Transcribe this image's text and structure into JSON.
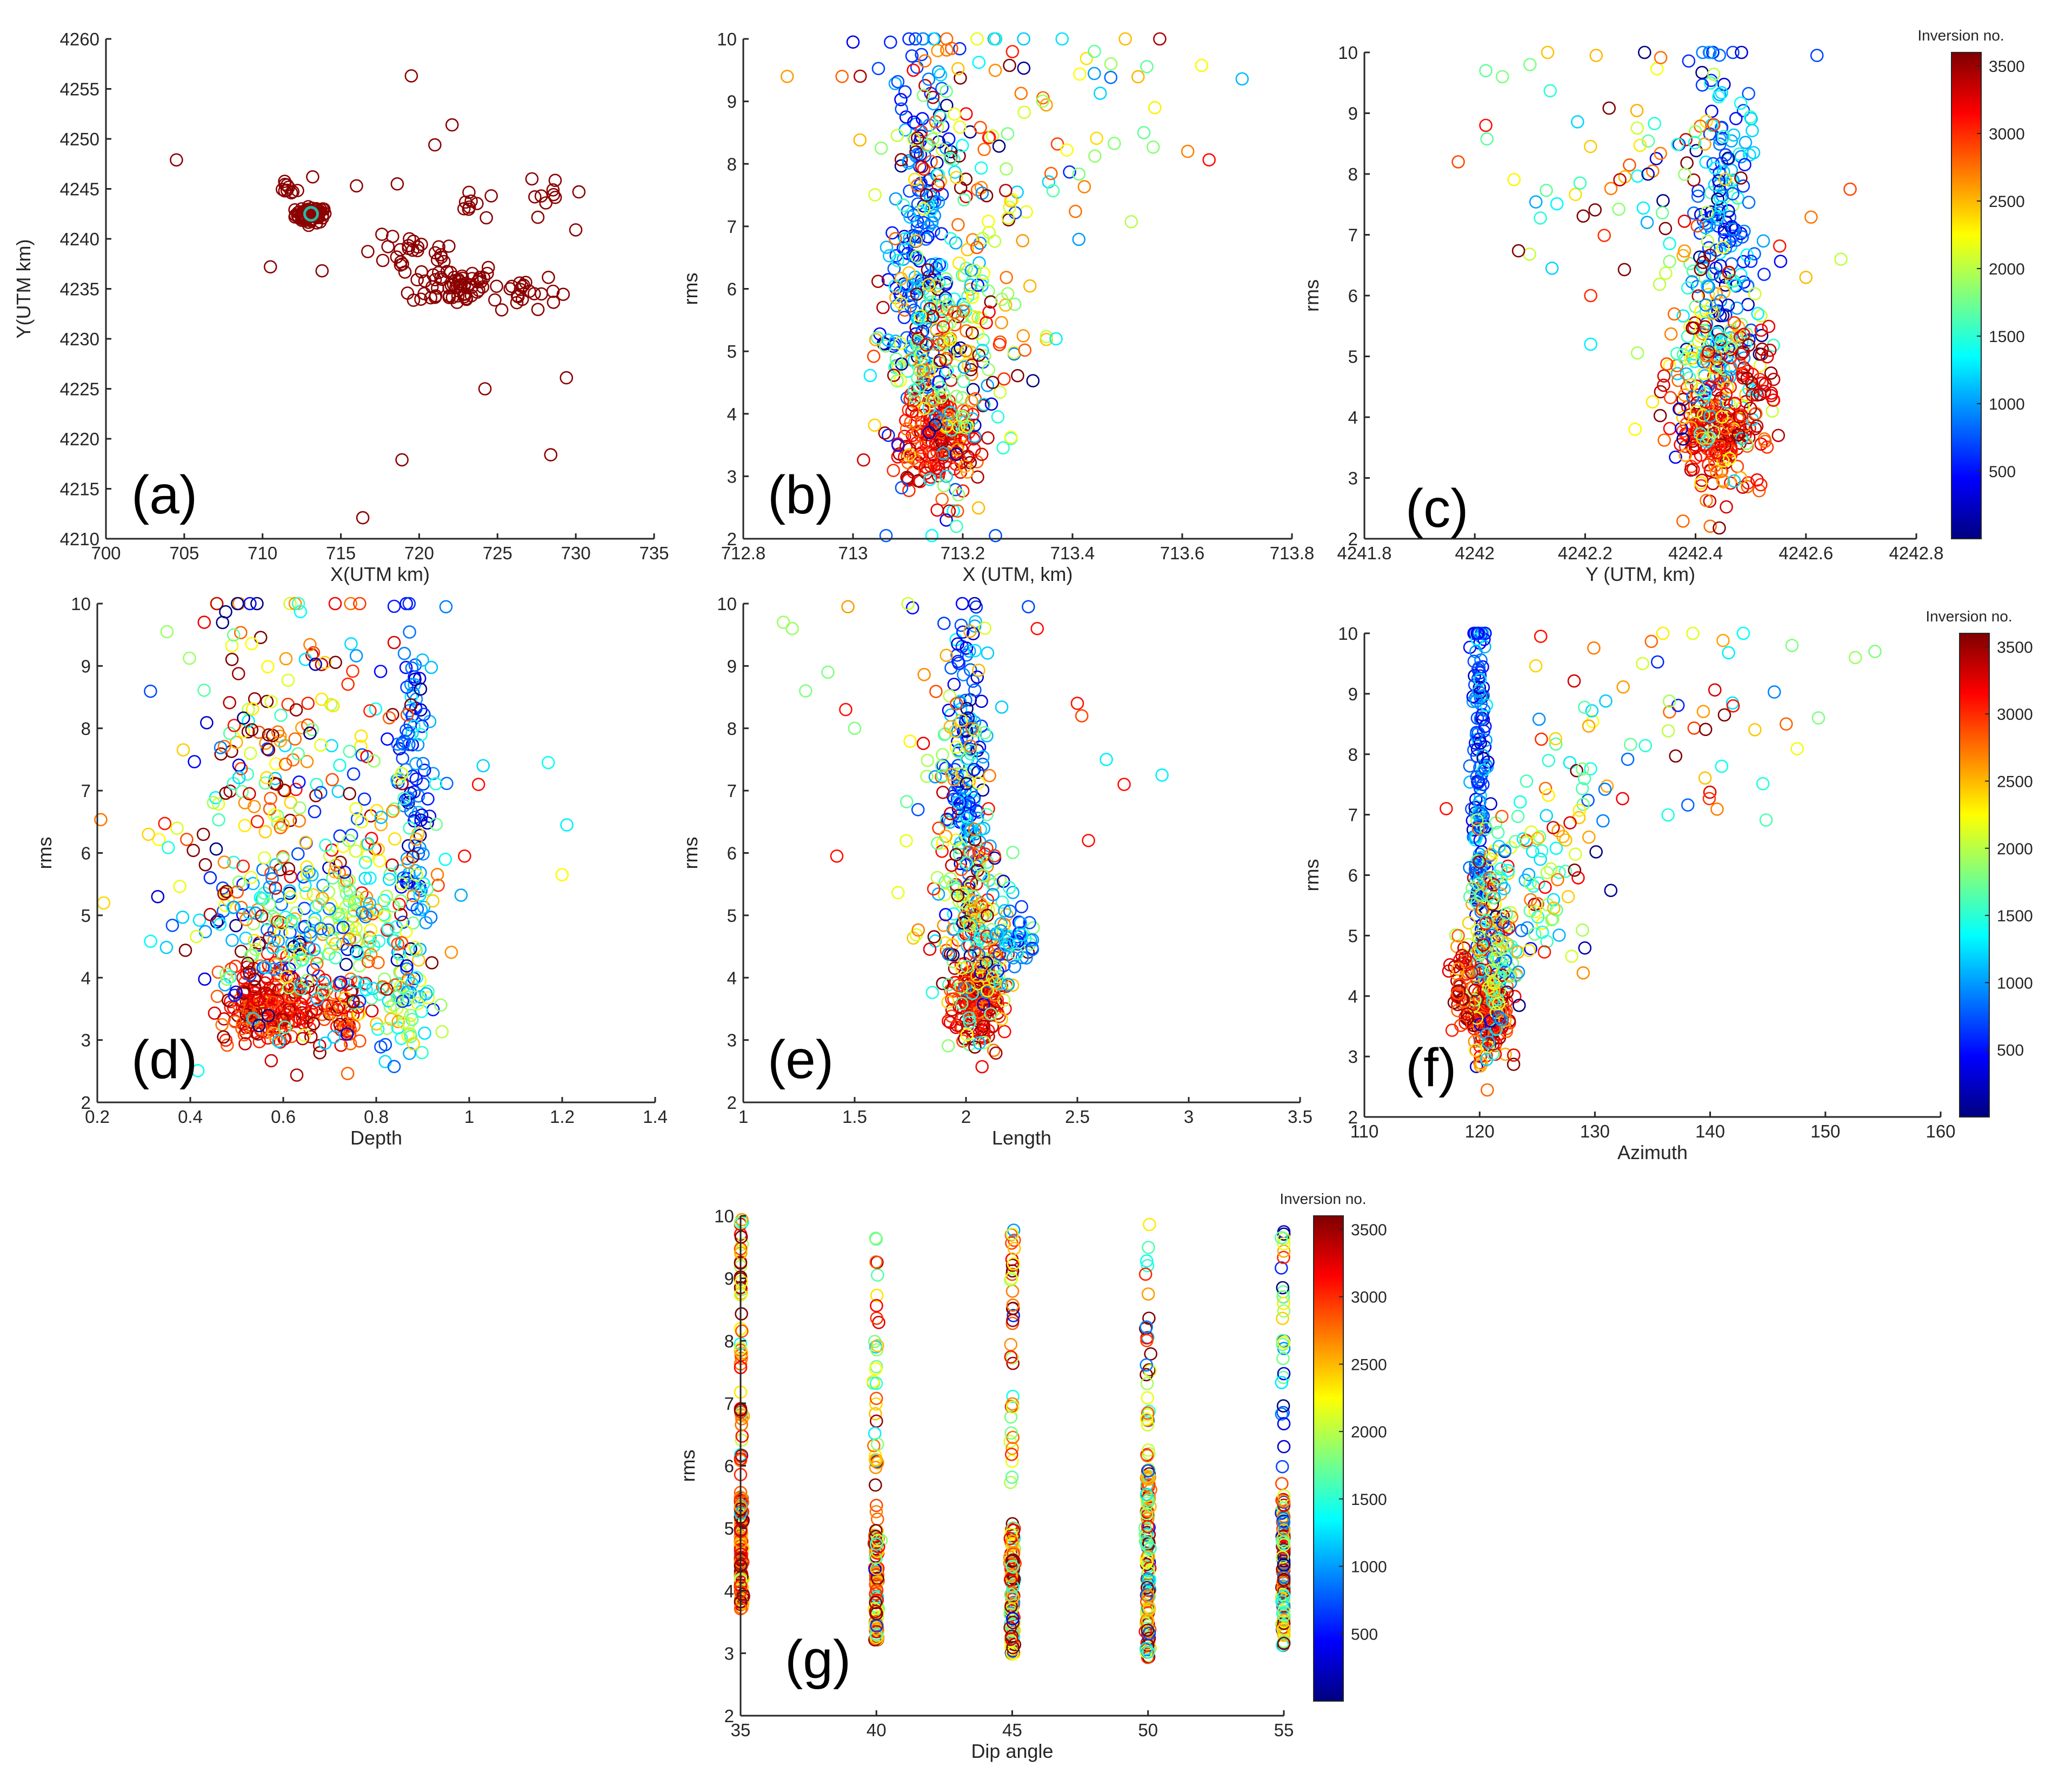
{
  "figure": {
    "description_free": true
  },
  "colors": {
    "jet": [
      "#00007f",
      "#0000ff",
      "#007fff",
      "#00ffff",
      "#7fff7f",
      "#ffff00",
      "#ff7f00",
      "#ff0000",
      "#7f0000"
    ],
    "axis": "#262626",
    "panel_a_marker": "#8b0000",
    "panel_a_highlight": "#26b8a0"
  },
  "colorbar": {
    "title": "Inversion no.",
    "range": [
      0,
      3600
    ],
    "ticks": [
      500,
      1000,
      1500,
      2000,
      2500,
      3000,
      3500
    ],
    "tick_labels": [
      "500",
      "1000",
      "1500",
      "2000",
      "2500",
      "3000",
      "3500"
    ]
  },
  "chart_data": [
    {
      "id": "a",
      "panel_label": "(a)",
      "type": "scatter",
      "title": "",
      "xlabel": "X(UTM km)",
      "ylabel": "Y(UTM km)",
      "xlim": [
        700,
        735
      ],
      "ylim": [
        4210,
        4260
      ],
      "xticks": [
        700,
        705,
        710,
        715,
        720,
        725,
        730,
        735
      ],
      "yticks": [
        4210,
        4215,
        4220,
        4225,
        4230,
        4235,
        4240,
        4245,
        4250,
        4255,
        4260
      ],
      "color_mode": "single",
      "clusters": [
        {
          "x": 713.1,
          "y": 4242.4,
          "sx": 0.5,
          "sy": 0.4,
          "n": 70
        },
        {
          "x": 711.6,
          "y": 4245.0,
          "sx": 0.3,
          "sy": 0.3,
          "n": 10
        },
        {
          "x": 719.5,
          "y": 4238.5,
          "sx": 1.6,
          "sy": 0.9,
          "n": 25
        },
        {
          "x": 722.3,
          "y": 4235.5,
          "sx": 1.4,
          "sy": 1.1,
          "n": 60
        },
        {
          "x": 726.5,
          "y": 4234.8,
          "sx": 1.2,
          "sy": 0.9,
          "n": 22
        },
        {
          "x": 728.2,
          "y": 4244.0,
          "sx": 0.6,
          "sy": 0.8,
          "n": 8
        },
        {
          "x": 723.2,
          "y": 4243.3,
          "sx": 0.4,
          "sy": 0.6,
          "n": 8
        }
      ],
      "points": [
        {
          "x": 704.5,
          "y": 4247.9
        },
        {
          "x": 719.5,
          "y": 4256.3
        },
        {
          "x": 722.1,
          "y": 4251.4
        },
        {
          "x": 721.0,
          "y": 4249.4
        },
        {
          "x": 713.2,
          "y": 4246.2
        },
        {
          "x": 716.0,
          "y": 4245.3
        },
        {
          "x": 718.6,
          "y": 4245.5
        },
        {
          "x": 710.5,
          "y": 4237.2
        },
        {
          "x": 713.8,
          "y": 4236.8
        },
        {
          "x": 724.2,
          "y": 4225.0
        },
        {
          "x": 729.4,
          "y": 4226.1
        },
        {
          "x": 718.9,
          "y": 4217.9
        },
        {
          "x": 728.4,
          "y": 4218.4
        },
        {
          "x": 716.4,
          "y": 4212.1
        },
        {
          "x": 730.2,
          "y": 4244.7
        },
        {
          "x": 730.0,
          "y": 4240.9
        },
        {
          "x": 727.2,
          "y": 4246.0
        },
        {
          "x": 724.6,
          "y": 4244.3
        }
      ]
    },
    {
      "id": "b",
      "panel_label": "(b)",
      "type": "scatter",
      "title": "",
      "xlabel": "X (UTM, km)",
      "ylabel": "rms",
      "xlim": [
        712.8,
        713.8
      ],
      "ylim": [
        2,
        10
      ],
      "xticks": [
        712.8,
        713,
        713.2,
        713.4,
        713.6,
        713.8
      ],
      "xtick_labels": [
        "712.8",
        "713",
        "713.2",
        "713.4",
        "713.6",
        "713.8"
      ],
      "yticks": [
        2,
        3,
        4,
        5,
        6,
        7,
        8,
        9,
        10
      ],
      "color_mode": "inversion",
      "clusters": [
        {
          "x": 713.12,
          "y": 6.8,
          "sx": 0.028,
          "sy": 1.7,
          "n": 170,
          "c": 700,
          "cs": 350
        },
        {
          "x": 713.16,
          "y": 3.6,
          "sx": 0.035,
          "sy": 0.4,
          "n": 170,
          "c": 3150,
          "cs": 250
        },
        {
          "x": 713.15,
          "y": 4.8,
          "sx": 0.05,
          "sy": 0.9,
          "n": 180,
          "c": 1900,
          "cs": 900
        },
        {
          "x": 713.22,
          "y": 5.6,
          "sx": 0.06,
          "sy": 1.3,
          "n": 110,
          "c": 2300,
          "cs": 900
        },
        {
          "x": 713.18,
          "y": 8.6,
          "sx": 0.07,
          "sy": 0.9,
          "n": 70,
          "c": 2400,
          "cs": 1000
        },
        {
          "x": 713.36,
          "y": 8.2,
          "sx": 0.12,
          "sy": 1.2,
          "n": 40,
          "c": 2100,
          "cs": 800
        }
      ],
      "points": [
        {
          "x": 712.88,
          "y": 9.4,
          "c": 2600
        },
        {
          "x": 712.98,
          "y": 9.4,
          "c": 2800
        },
        {
          "x": 713.61,
          "y": 8.2,
          "c": 2700
        },
        {
          "x": 713.55,
          "y": 8.9,
          "c": 2300
        },
        {
          "x": 713.53,
          "y": 8.5,
          "c": 1700
        },
        {
          "x": 713.47,
          "y": 9.6,
          "c": 1900
        },
        {
          "x": 713.44,
          "y": 9.8,
          "c": 1700
        },
        {
          "x": 713.0,
          "y": 9.95,
          "c": 400
        },
        {
          "x": 713.17,
          "y": 3.0,
          "c": 1200
        },
        {
          "x": 713.14,
          "y": 2.95,
          "c": 1300
        },
        {
          "x": 713.37,
          "y": 5.2,
          "c": 1300
        }
      ]
    },
    {
      "id": "c",
      "panel_label": "(c)",
      "type": "scatter",
      "title": "",
      "xlabel": "Y (UTM, km)",
      "ylabel": "rms",
      "xlim": [
        4241.8,
        4242.8
      ],
      "ylim": [
        2,
        10
      ],
      "xticks": [
        4241.8,
        4242,
        4242.2,
        4242.4,
        4242.6,
        4242.8
      ],
      "xtick_labels": [
        "4241.8",
        "4242",
        "4242.2",
        "4242.4",
        "4242.6",
        "4242.8"
      ],
      "yticks": [
        2,
        3,
        4,
        5,
        6,
        7,
        8,
        9,
        10
      ],
      "color_mode": "inversion",
      "clusters": [
        {
          "x": 4242.45,
          "y": 7.0,
          "sx": 0.025,
          "sy": 1.6,
          "n": 170,
          "c": 800,
          "cs": 450
        },
        {
          "x": 4242.44,
          "y": 3.7,
          "sx": 0.04,
          "sy": 0.45,
          "n": 160,
          "c": 3150,
          "cs": 250
        },
        {
          "x": 4242.43,
          "y": 5.0,
          "sx": 0.05,
          "sy": 0.9,
          "n": 170,
          "c": 2000,
          "cs": 900
        },
        {
          "x": 4242.5,
          "y": 4.6,
          "sx": 0.02,
          "sy": 0.5,
          "n": 40,
          "c": 3300,
          "cs": 200
        },
        {
          "x": 4242.3,
          "y": 7.8,
          "sx": 0.11,
          "sy": 1.2,
          "n": 70,
          "c": 2300,
          "cs": 1000
        }
      ],
      "points": [
        {
          "x": 4241.97,
          "y": 8.2,
          "c": 2900
        },
        {
          "x": 4242.02,
          "y": 8.8,
          "c": 3100
        },
        {
          "x": 4242.02,
          "y": 9.7,
          "c": 1700
        },
        {
          "x": 4242.05,
          "y": 9.6,
          "c": 1800
        },
        {
          "x": 4242.1,
          "y": 9.8,
          "c": 1800
        },
        {
          "x": 4242.14,
          "y": 6.45,
          "c": 1200
        },
        {
          "x": 4242.21,
          "y": 6.0,
          "c": 3000
        },
        {
          "x": 4242.21,
          "y": 5.2,
          "c": 1300
        },
        {
          "x": 4242.68,
          "y": 7.75,
          "c": 2900
        },
        {
          "x": 4242.62,
          "y": 9.95,
          "c": 700
        },
        {
          "x": 4242.6,
          "y": 6.3,
          "c": 2500
        },
        {
          "x": 4242.47,
          "y": 2.95,
          "c": 1200
        },
        {
          "x": 4242.55,
          "y": 3.7,
          "c": 3400
        },
        {
          "x": 4242.22,
          "y": 9.95,
          "c": 2500
        }
      ]
    },
    {
      "id": "d",
      "panel_label": "(d)",
      "type": "scatter",
      "title": "",
      "xlabel": "Depth",
      "ylabel": "rms",
      "xlim": [
        0.2,
        1.4
      ],
      "ylim": [
        2,
        10
      ],
      "xticks": [
        0.2,
        0.4,
        0.6,
        0.8,
        1,
        1.2,
        1.4
      ],
      "xtick_labels": [
        "0.2",
        "0.4",
        "0.6",
        "0.8",
        "1",
        "1.2",
        "1.4"
      ],
      "yticks": [
        2,
        3,
        4,
        5,
        6,
        7,
        8,
        9,
        10
      ],
      "color_mode": "inversion",
      "clusters": [
        {
          "x": 0.88,
          "y": 7.0,
          "sx": 0.02,
          "sy": 1.4,
          "n": 100,
          "c": 750,
          "cs": 300
        },
        {
          "x": 0.54,
          "y": 3.6,
          "sx": 0.04,
          "sy": 0.35,
          "n": 110,
          "c": 3150,
          "cs": 250
        },
        {
          "x": 0.61,
          "y": 3.5,
          "sx": 0.03,
          "sy": 0.35,
          "n": 90,
          "c": 3150,
          "cs": 250
        },
        {
          "x": 0.72,
          "y": 3.4,
          "sx": 0.03,
          "sy": 0.3,
          "n": 60,
          "c": 3100,
          "cs": 300
        },
        {
          "x": 0.86,
          "y": 3.6,
          "sx": 0.03,
          "sy": 0.4,
          "n": 60,
          "c": 1700,
          "cs": 700
        },
        {
          "x": 0.65,
          "y": 4.7,
          "sx": 0.12,
          "sy": 0.7,
          "n": 230,
          "c": 1600,
          "cs": 900
        },
        {
          "x": 0.6,
          "y": 7.2,
          "sx": 0.14,
          "sy": 1.7,
          "n": 220,
          "c": 2300,
          "cs": 1000
        },
        {
          "x": 0.82,
          "y": 5.5,
          "sx": 0.05,
          "sy": 0.8,
          "n": 60,
          "c": 1900,
          "cs": 600
        }
      ],
      "points": [
        {
          "x": 0.31,
          "y": 6.3,
          "c": 2400
        },
        {
          "x": 0.33,
          "y": 5.3,
          "c": 300
        },
        {
          "x": 1.17,
          "y": 7.45,
          "c": 1400
        },
        {
          "x": 1.21,
          "y": 6.45,
          "c": 1300
        },
        {
          "x": 1.02,
          "y": 7.1,
          "c": 3100
        },
        {
          "x": 1.03,
          "y": 7.4,
          "c": 1200
        },
        {
          "x": 0.99,
          "y": 5.95,
          "c": 3100
        },
        {
          "x": 0.35,
          "y": 9.55,
          "c": 1900
        },
        {
          "x": 0.43,
          "y": 9.7,
          "c": 3200
        },
        {
          "x": 0.69,
          "y": 2.95,
          "c": 1200
        },
        {
          "x": 0.59,
          "y": 2.98,
          "c": 1200
        },
        {
          "x": 0.95,
          "y": 9.95,
          "c": 900
        }
      ]
    },
    {
      "id": "e",
      "panel_label": "(e)",
      "type": "scatter",
      "title": "",
      "xlabel": "Length",
      "ylabel": "rms",
      "xlim": [
        1,
        3.5
      ],
      "ylim": [
        2,
        10
      ],
      "xticks": [
        1,
        1.5,
        2,
        2.5,
        3,
        3.5
      ],
      "xtick_labels": [
        "1",
        "1.5",
        "2",
        "2.5",
        "3",
        "3.5"
      ],
      "yticks": [
        2,
        3,
        4,
        5,
        6,
        7,
        8,
        9,
        10
      ],
      "color_mode": "inversion",
      "clusters": [
        {
          "x": 2.01,
          "y": 7.4,
          "sx": 0.035,
          "sy": 1.3,
          "n": 140,
          "c": 800,
          "cs": 400
        },
        {
          "x": 2.06,
          "y": 3.6,
          "sx": 0.06,
          "sy": 0.35,
          "n": 160,
          "c": 3150,
          "cs": 250
        },
        {
          "x": 2.05,
          "y": 4.6,
          "sx": 0.08,
          "sy": 0.7,
          "n": 170,
          "c": 2000,
          "cs": 900
        },
        {
          "x": 1.95,
          "y": 7.0,
          "sx": 0.1,
          "sy": 1.5,
          "n": 90,
          "c": 2300,
          "cs": 1000
        },
        {
          "x": 2.22,
          "y": 4.7,
          "sx": 0.05,
          "sy": 0.3,
          "n": 40,
          "c": 1000,
          "cs": 300
        }
      ],
      "points": [
        {
          "x": 1.18,
          "y": 9.7,
          "c": 1900
        },
        {
          "x": 1.22,
          "y": 9.6,
          "c": 1900
        },
        {
          "x": 1.28,
          "y": 8.6,
          "c": 1800
        },
        {
          "x": 1.38,
          "y": 8.9,
          "c": 1800
        },
        {
          "x": 1.42,
          "y": 5.95,
          "c": 3100
        },
        {
          "x": 1.47,
          "y": 9.95,
          "c": 2600
        },
        {
          "x": 1.46,
          "y": 8.3,
          "c": 3100
        },
        {
          "x": 1.5,
          "y": 8.0,
          "c": 1800
        },
        {
          "x": 2.5,
          "y": 8.4,
          "c": 3100
        },
        {
          "x": 2.52,
          "y": 8.2,
          "c": 2900
        },
        {
          "x": 2.55,
          "y": 6.2,
          "c": 3100
        },
        {
          "x": 2.63,
          "y": 7.5,
          "c": 1300
        },
        {
          "x": 2.71,
          "y": 7.1,
          "c": 3100
        },
        {
          "x": 2.88,
          "y": 7.25,
          "c": 1300
        },
        {
          "x": 2.28,
          "y": 9.95,
          "c": 700
        },
        {
          "x": 2.32,
          "y": 9.6,
          "c": 3100
        },
        {
          "x": 2.06,
          "y": 2.95,
          "c": 1200
        }
      ]
    },
    {
      "id": "f",
      "panel_label": "(f)",
      "type": "scatter",
      "title": "",
      "xlabel": "Azimuth",
      "ylabel": "rms",
      "xlim": [
        110,
        160
      ],
      "ylim": [
        2,
        10
      ],
      "xticks": [
        110,
        120,
        130,
        140,
        150,
        160
      ],
      "xtick_labels": [
        "110",
        "120",
        "130",
        "140",
        "150",
        "160"
      ],
      "yticks": [
        2,
        3,
        4,
        5,
        6,
        7,
        8,
        9,
        10
      ],
      "color_mode": "inversion",
      "clusters": [
        {
          "x": 120.0,
          "y": 7.3,
          "sx": 0.35,
          "sy": 1.6,
          "n": 170,
          "c": 700,
          "cs": 350
        },
        {
          "x": 120.8,
          "y": 3.7,
          "sx": 0.9,
          "sy": 0.4,
          "n": 150,
          "c": 3100,
          "cs": 300
        },
        {
          "x": 121.0,
          "y": 4.8,
          "sx": 1.0,
          "sy": 0.8,
          "n": 160,
          "c": 2000,
          "cs": 900
        },
        {
          "x": 124.5,
          "y": 5.9,
          "sx": 2.0,
          "sy": 0.8,
          "n": 70,
          "c": 1600,
          "cs": 700
        },
        {
          "x": 128.0,
          "y": 7.1,
          "sx": 2.8,
          "sy": 1.0,
          "n": 40,
          "c": 2200,
          "cs": 900
        },
        {
          "x": 138.0,
          "y": 8.5,
          "sx": 6.0,
          "sy": 0.8,
          "n": 40,
          "c": 2400,
          "cs": 900
        },
        {
          "x": 118.3,
          "y": 4.1,
          "sx": 0.5,
          "sy": 0.5,
          "n": 40,
          "c": 3100,
          "cs": 400
        }
      ],
      "points": [
        {
          "x": 154.3,
          "y": 9.7,
          "c": 1800
        },
        {
          "x": 152.6,
          "y": 9.6,
          "c": 1900
        },
        {
          "x": 149.4,
          "y": 8.6,
          "c": 1800
        },
        {
          "x": 147.1,
          "y": 9.8,
          "c": 1800
        },
        {
          "x": 146.6,
          "y": 8.5,
          "c": 2800
        },
        {
          "x": 141.0,
          "y": 7.8,
          "c": 1400
        },
        {
          "x": 117.1,
          "y": 7.1,
          "c": 3100
        },
        {
          "x": 120.6,
          "y": 2.95,
          "c": 1200
        },
        {
          "x": 125.3,
          "y": 9.95,
          "c": 3100
        },
        {
          "x": 142.0,
          "y": 8.8,
          "c": 3100
        }
      ]
    },
    {
      "id": "g",
      "panel_label": "(g)",
      "type": "scatter",
      "title": "",
      "xlabel": "Dip angle",
      "ylabel": "rms",
      "xlim": [
        35,
        55
      ],
      "ylim": [
        2,
        10
      ],
      "xticks": [
        35,
        40,
        45,
        50,
        55
      ],
      "xtick_labels": [
        "35",
        "40",
        "45",
        "50",
        "55"
      ],
      "yticks": [
        2,
        3,
        4,
        5,
        6,
        7,
        8,
        9,
        10
      ],
      "color_mode": "inversion",
      "columns": [
        {
          "x": 35,
          "ymin": 3.7,
          "ymax": 10.0,
          "dense_below": 5.5,
          "n": 170,
          "c": 2800,
          "cs": 700
        },
        {
          "x": 40,
          "ymin": 3.2,
          "ymax": 9.7,
          "dense_below": 5.0,
          "n": 150,
          "c": 2600,
          "cs": 800
        },
        {
          "x": 45,
          "ymin": 2.95,
          "ymax": 10.0,
          "dense_below": 5.0,
          "n": 150,
          "c": 2500,
          "cs": 900
        },
        {
          "x": 50,
          "ymin": 2.9,
          "ymax": 9.9,
          "dense_below": 6.0,
          "n": 160,
          "c": 2400,
          "cs": 1000
        },
        {
          "x": 55,
          "ymin": 3.1,
          "ymax": 10.0,
          "dense_below": 5.5,
          "n": 180,
          "c": 1700,
          "cs": 1300
        }
      ],
      "points": []
    }
  ]
}
